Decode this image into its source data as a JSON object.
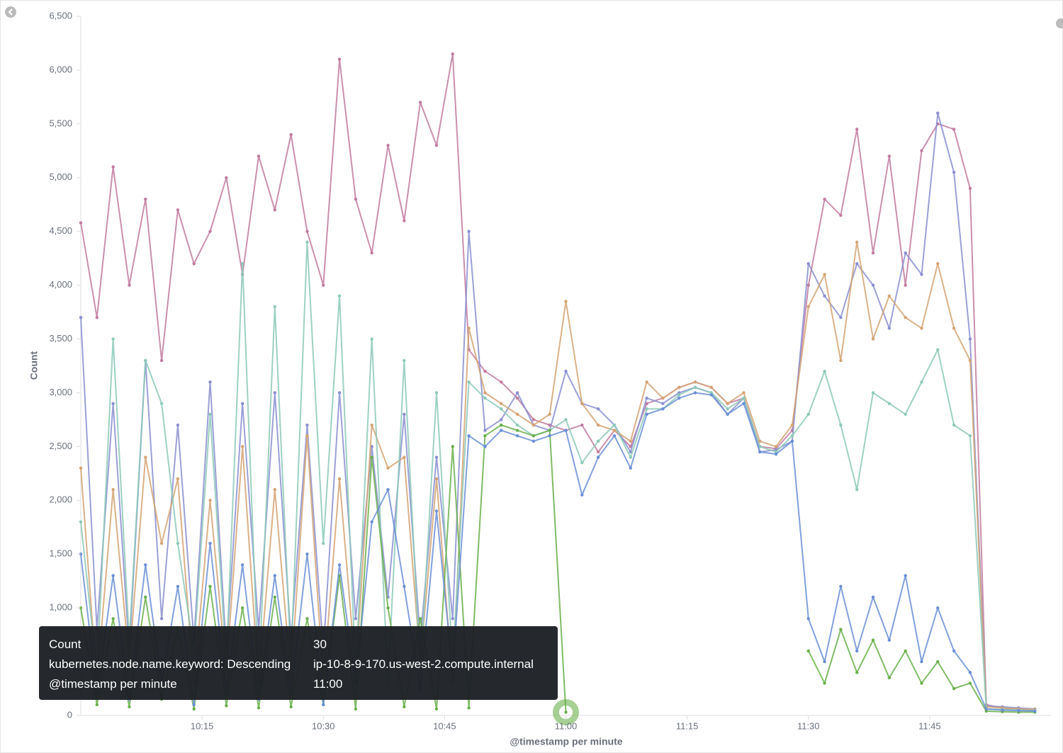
{
  "chart_data": {
    "type": "line",
    "y_label": "Count",
    "x_label": "@timestamp per minute",
    "x": [
      "10:00",
      "10:02",
      "10:04",
      "10:06",
      "10:08",
      "10:10",
      "10:12",
      "10:14",
      "10:16",
      "10:18",
      "10:20",
      "10:22",
      "10:24",
      "10:26",
      "10:28",
      "10:30",
      "10:32",
      "10:34",
      "10:36",
      "10:38",
      "10:40",
      "10:42",
      "10:44",
      "10:46",
      "10:48",
      "10:50",
      "10:52",
      "10:54",
      "10:56",
      "10:58",
      "11:00",
      "11:02",
      "11:04",
      "11:06",
      "11:08",
      "11:10",
      "11:12",
      "11:14",
      "11:16",
      "11:18",
      "11:20",
      "11:22",
      "11:24",
      "11:26",
      "11:28",
      "11:30",
      "11:32",
      "11:34",
      "11:36",
      "11:38",
      "11:40",
      "11:42",
      "11:44",
      "11:46",
      "11:48",
      "11:50",
      "11:52",
      "11:54",
      "11:56",
      "11:58"
    ],
    "xlim": [
      "10:00",
      "12:00"
    ],
    "xticks": [
      "10:15",
      "10:30",
      "10:45",
      "11:00",
      "11:15",
      "11:30",
      "11:45"
    ],
    "ylim": [
      0,
      6500
    ],
    "yticks": [
      0,
      500,
      {
        "value": 1000,
        "label": "1,000"
      },
      {
        "value": 1500,
        "label": "1,500"
      },
      {
        "value": 2000,
        "label": "2,000"
      },
      {
        "value": 2500,
        "label": "2,500"
      },
      {
        "value": 3000,
        "label": "3,000"
      },
      {
        "value": 3500,
        "label": "3,500"
      },
      {
        "value": 4000,
        "label": "4,000"
      },
      {
        "value": 4500,
        "label": "4,500"
      },
      {
        "value": 5000,
        "label": "5,000"
      },
      {
        "value": 5500,
        "label": "5,500"
      },
      {
        "value": 6000,
        "label": "6,000"
      },
      {
        "value": 6500,
        "label": "6,500"
      }
    ],
    "grid": false,
    "series": [
      {
        "color": "#c27ba0",
        "values": [
          4580,
          3700,
          5100,
          4000,
          4800,
          3300,
          4700,
          4200,
          4500,
          5000,
          4100,
          5200,
          4700,
          5400,
          4500,
          4000,
          6100,
          4800,
          4300,
          5300,
          4600,
          5700,
          5300,
          6150,
          3400,
          3200,
          3100,
          2950,
          2750,
          2700,
          2650,
          2700,
          2450,
          2650,
          2500,
          2900,
          2950,
          3050,
          3100,
          3050,
          2900,
          2950,
          2500,
          2480,
          2650,
          4000,
          4800,
          4650,
          5450,
          4300,
          5200,
          4000,
          5250,
          5500,
          5450,
          4900,
          100,
          70,
          60,
          50
        ]
      },
      {
        "color": "#8a8fd0",
        "values": [
          3700,
          800,
          2900,
          600,
          3300,
          900,
          2700,
          700,
          3100,
          600,
          2900,
          800,
          3000,
          700,
          2700,
          600,
          3000,
          900,
          2500,
          1100,
          2800,
          700,
          2400,
          900,
          4500,
          2650,
          2750,
          3000,
          2700,
          2650,
          3200,
          2900,
          2850,
          2700,
          2450,
          2950,
          2900,
          3000,
          3050,
          3000,
          2800,
          2950,
          2450,
          2470,
          2550,
          4200,
          3900,
          3700,
          4200,
          4000,
          3600,
          4300,
          4100,
          5600,
          5050,
          3500,
          90,
          80,
          70,
          60
        ]
      },
      {
        "color": "#d4a373",
        "values": [
          2300,
          300,
          2100,
          500,
          2400,
          1600,
          2200,
          300,
          2000,
          400,
          2500,
          300,
          2100,
          350,
          2600,
          300,
          2200,
          400,
          2700,
          2300,
          2400,
          500,
          2200,
          300,
          3600,
          3000,
          2900,
          2800,
          2700,
          2800,
          3850,
          2900,
          2700,
          2650,
          2550,
          3100,
          2950,
          3050,
          3100,
          3050,
          2900,
          3000,
          2550,
          2500,
          2700,
          3800,
          4100,
          3300,
          4400,
          3500,
          3900,
          3700,
          3600,
          4200,
          3600,
          3300,
          80,
          70,
          60,
          55
        ]
      },
      {
        "color": "#8cc9b8",
        "values": [
          1800,
          400,
          3500,
          700,
          3300,
          2900,
          1600,
          600,
          2800,
          500,
          4200,
          300,
          3800,
          500,
          4400,
          1600,
          3900,
          400,
          3500,
          300,
          3300,
          400,
          3000,
          500,
          3100,
          2950,
          2850,
          2700,
          2600,
          2650,
          2750,
          2350,
          2550,
          2700,
          2400,
          2850,
          2850,
          2980,
          3050,
          3000,
          2850,
          2950,
          2500,
          2450,
          2600,
          2800,
          3200,
          2700,
          2100,
          3000,
          2900,
          2800,
          3100,
          3400,
          2700,
          2600,
          60,
          55,
          50,
          45
        ]
      },
      {
        "color": "#6ab04c",
        "values": [
          1000,
          100,
          900,
          80,
          1100,
          150,
          800,
          60,
          1200,
          90,
          1000,
          70,
          1100,
          80,
          900,
          100,
          1300,
          60,
          2400,
          1000,
          80,
          900,
          60,
          2500,
          70,
          2600,
          2700,
          2650,
          2600,
          2650,
          30,
          null,
          null,
          null,
          null,
          null,
          null,
          null,
          null,
          null,
          null,
          null,
          null,
          null,
          null,
          600,
          300,
          800,
          400,
          700,
          350,
          600,
          300,
          500,
          250,
          300,
          40,
          35,
          30,
          30
        ]
      },
      {
        "color": "#6b8fd6",
        "values": [
          1500,
          200,
          1300,
          150,
          1400,
          300,
          1200,
          100,
          1600,
          200,
          1400,
          150,
          1300,
          200,
          1500,
          100,
          1400,
          300,
          1800,
          2100,
          1200,
          250,
          1900,
          400,
          2600,
          2500,
          2650,
          2600,
          2550,
          2600,
          2650,
          2050,
          2400,
          2600,
          2300,
          2800,
          2850,
          2950,
          3000,
          2980,
          2800,
          2900,
          2450,
          2430,
          2550,
          900,
          500,
          1200,
          600,
          1100,
          700,
          1300,
          500,
          1000,
          600,
          400,
          60,
          50,
          45,
          40
        ]
      }
    ],
    "tooltip": {
      "rows": [
        [
          "Count",
          "30"
        ],
        [
          "kubernetes.node.name.keyword: Descending",
          "ip-10-8-9-170.us-west-2.compute.internal"
        ],
        [
          "@timestamp per minute",
          "11:00"
        ]
      ]
    }
  }
}
